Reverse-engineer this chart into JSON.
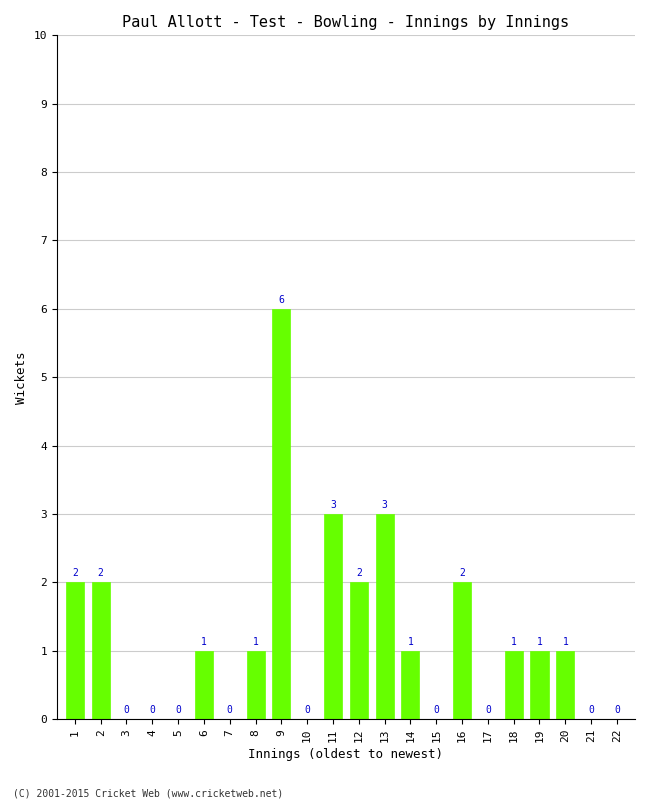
{
  "title": "Paul Allott - Test - Bowling - Innings by Innings",
  "xlabel": "Innings (oldest to newest)",
  "ylabel": "Wickets",
  "innings": [
    1,
    2,
    3,
    4,
    5,
    6,
    7,
    8,
    9,
    10,
    11,
    12,
    13,
    14,
    15,
    16,
    17,
    18,
    19,
    20,
    21,
    22
  ],
  "wickets": [
    2,
    2,
    0,
    0,
    0,
    1,
    0,
    1,
    6,
    0,
    3,
    2,
    3,
    1,
    0,
    2,
    0,
    1,
    1,
    1,
    0,
    0
  ],
  "bar_color": "#66ff00",
  "bar_edge_color": "#66ff00",
  "label_color": "#0000cc",
  "background_color": "#ffffff",
  "ylim": [
    0,
    10
  ],
  "yticks": [
    0,
    1,
    2,
    3,
    4,
    5,
    6,
    7,
    8,
    9,
    10
  ],
  "grid_color": "#cccccc",
  "title_fontsize": 11,
  "axis_label_fontsize": 9,
  "tick_fontsize": 8,
  "annotation_fontsize": 7,
  "footer": "(C) 2001-2015 Cricket Web (www.cricketweb.net)"
}
